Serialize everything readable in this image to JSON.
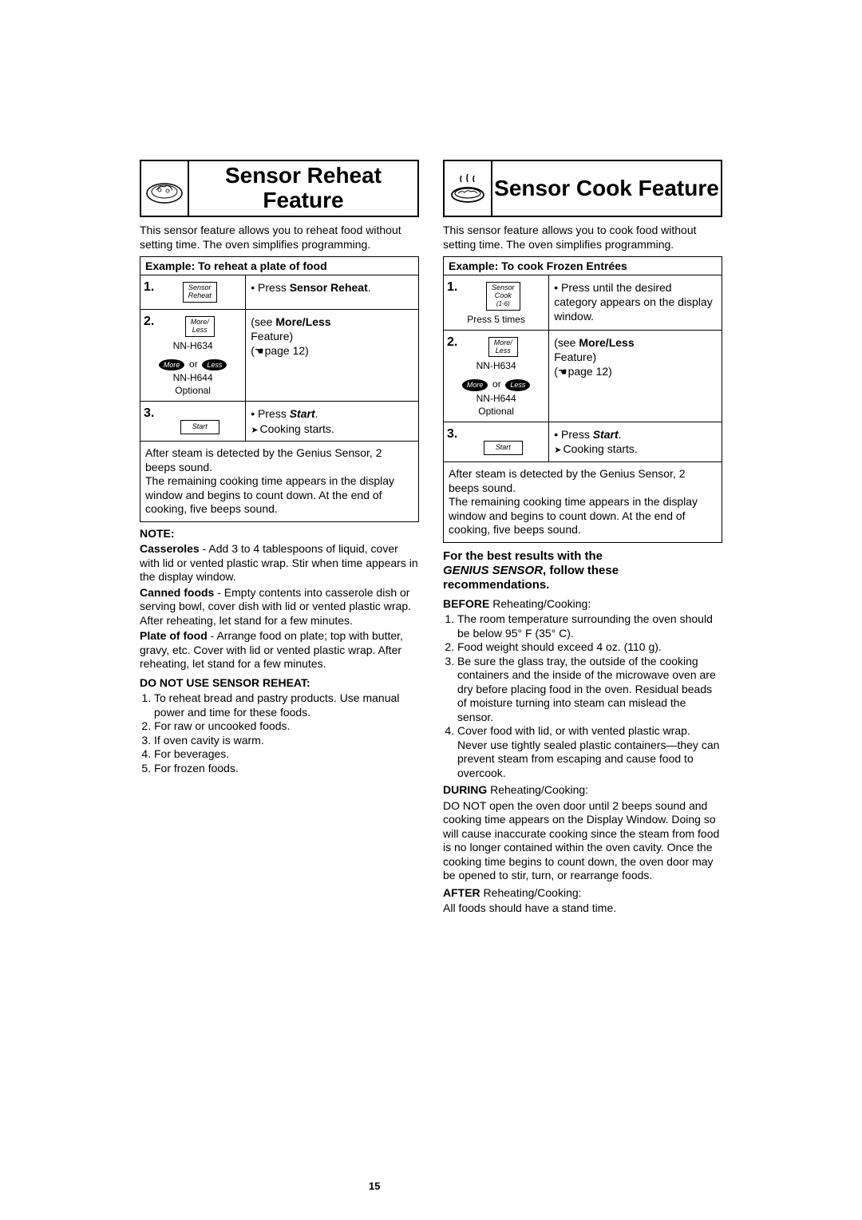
{
  "left": {
    "title": "Sensor Reheat Feature",
    "intro": "This sensor feature allows you to reheat food without setting time. The oven simplifies programming.",
    "example_header": "Example: To reheat a plate of food",
    "step1": {
      "btn_line1": "Sensor",
      "btn_line2": "Reheat",
      "text_prefix": "Press ",
      "text_bold": "Sensor Reheat",
      "text_suffix": "."
    },
    "step2": {
      "moreless_line1": "More/",
      "moreless_line2": "Less",
      "model1": "NN-H634",
      "more_btn": "More",
      "or": "or",
      "less_btn": "Less",
      "model2": "NN-H644",
      "optional": "Optional",
      "see_prefix": "(see ",
      "see_bold": "More/Less",
      "feature": "Feature)",
      "page_ref": "page 12)"
    },
    "step3": {
      "start_btn": "Start",
      "press_prefix": "Press ",
      "press_bold": "Start",
      "press_suffix": ".",
      "cooking": "Cooking starts."
    },
    "footer": "After steam is detected by the Genius Sensor, 2 beeps sound.\nThe remaining cooking time appears in the display window and begins to count down. At the end of cooking, five beeps sound.",
    "note_label": "NOTE:",
    "casseroles_label": "Casseroles",
    "casseroles_text": " - Add 3 to 4 tablespoons of liquid, cover with lid or vented plastic wrap. Stir when time appears in the display window.",
    "canned_label": "Canned foods",
    "canned_text": " - Empty contents into casserole dish or serving bowl, cover dish with lid or vented plastic wrap. After reheating, let stand for a few minutes.",
    "plate_label": "Plate of food",
    "plate_text": " - Arrange food on plate; top with butter, gravy, etc. Cover with lid or vented plastic wrap. After reheating, let stand for a few minutes.",
    "donot_header": "DO NOT USE SENSOR REHEAT:",
    "donot_items": [
      "To reheat bread and pastry products. Use manual power and time for these foods.",
      "For raw or uncooked foods.",
      "If oven cavity is warm.",
      "For beverages.",
      "For frozen foods."
    ]
  },
  "right": {
    "title": "Sensor Cook Feature",
    "intro": "This sensor feature allows you to cook food without setting time. The oven simplifies programming.",
    "example_header": "Example: To cook Frozen Entrées",
    "step1": {
      "btn_line1": "Sensor",
      "btn_line2": "Cook",
      "btn_line3": "(1-6)",
      "press5": "Press 5 times",
      "text": "Press until the desired category appears on the display window."
    },
    "step2": {
      "moreless_line1": "More/",
      "moreless_line2": "Less",
      "model1": "NN-H634",
      "more_btn": "More",
      "or": "or",
      "less_btn": "Less",
      "model2": "NN-H644",
      "optional": "Optional",
      "see_prefix": "(see ",
      "see_bold": "More/Less",
      "feature": "Feature)",
      "page_ref": "page 12)"
    },
    "step3": {
      "start_btn": "Start",
      "press_prefix": "Press ",
      "press_bold": "Start",
      "press_suffix": ".",
      "cooking": "Cooking starts."
    },
    "footer": "After steam is detected by the Genius Sensor, 2 beeps sound.\nThe remaining cooking time appears in the display window and begins to count down. At the end of cooking, five beeps sound.",
    "rec_head_1": "For the best results with the",
    "rec_head_2": "GENIUS SENSOR",
    "rec_head_3": ", follow these recommendations.",
    "before_label": "BEFORE",
    "before_text": " Reheating/Cooking:",
    "before_items": [
      "The room temperature surrounding the oven should be below 95° F (35° C).",
      "Food weight should exceed 4 oz. (110 g).",
      "Be sure the glass tray, the outside of the cooking containers and the inside of the microwave oven are dry before placing food in the oven. Residual beads of moisture turning into steam can mislead the sensor.",
      "Cover food with lid, or with vented plastic wrap. Never use tightly sealed plastic containers—they can prevent steam from escaping and cause food to overcook."
    ],
    "during_label": "DURING",
    "during_text": " Reheating/Cooking:",
    "during_para": "DO NOT open the oven door until 2 beeps sound and cooking time appears on the Display Window.  Doing so will cause inaccurate cooking since the steam from food is no longer contained within the oven cavity. Once the cooking time begins to count down, the oven door may be opened to stir, turn, or rearrange foods.",
    "after_label": "AFTER",
    "after_text": " Reheating/Cooking:",
    "after_para": "All foods should have a stand time."
  },
  "page_number": "15"
}
